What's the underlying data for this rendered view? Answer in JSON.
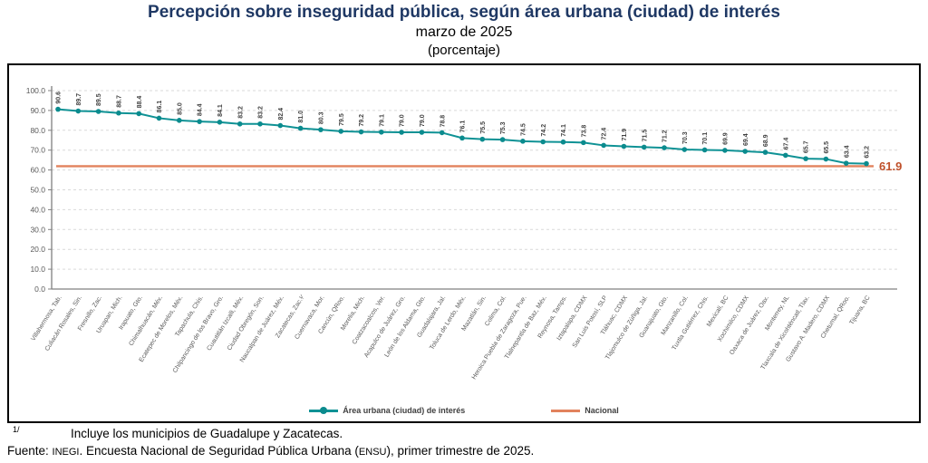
{
  "chart_data": {
    "type": "line",
    "title": "Percepción sobre inseguridad pública, según área urbana (ciudad) de interés",
    "subtitle": "marzo de 2025",
    "unit_label": "(porcentaje)",
    "ylim": [
      0,
      100
    ],
    "ytick_step": 10,
    "ytick_decimals": 1,
    "grid": "horizontal-dashed",
    "legend_position": "bottom",
    "categories": [
      "Villahermosa, Tab.",
      "Culiacán Rosales, Sin.",
      "Fresnillo, Zac.",
      "Uruapan, Mich.",
      "Irapuato, Gto.",
      "Chimalhuacán, Méx.",
      "Ecatepec de Morelos, Méx.",
      "Tapachula, Chis.",
      "Chilpancingo de los Bravo, Gro.",
      "Cuautitlán Izcalli, Méx.",
      "Ciudad Obregón, Son.",
      "Naucalpan de Juárez, Méx.",
      "Zacatecas, Zac.¹⁄",
      "Cuernavaca, Mor.",
      "Cancún, QRoo.",
      "Morelia, Mich.",
      "Coatzacoalcos, Ver.",
      "Acapulco de Juárez, Gro.",
      "León de los Aldama, Gto.",
      "Guadalajara, Jal.",
      "Toluca de Lerdo, Méx.",
      "Mazatlán, Sin.",
      "Colima, Col.",
      "Heroica Puebla de Zaragoza, Pue.",
      "Tlalnepantla de Baz, Méx.",
      "Reynosa, Tamps.",
      "Iztapalapa, CDMX",
      "San Luis Potosí, SLP",
      "Tláhuac, CDMX",
      "Tlajomulco de Zúñiga, Jal.",
      "Guanajuato, Gto.",
      "Manzanillo, Col.",
      "Tuxtla Gutiérrez, Chis.",
      "Mexicali, BC",
      "Xochimilco, CDMX",
      "Oaxaca de Juárez, Oax.",
      "Monterrey, NL",
      "Tlaxcala de Xicohténcatl, Tlax.",
      "Gustavo A. Madero, CDMX",
      "Chetumal, QRoo.",
      "Tijuana, BC"
    ],
    "series": [
      {
        "name": "Área urbana (ciudad) de interés",
        "color": "#0F9295",
        "marker_color": "#0B8B8E",
        "values": [
          90.6,
          89.7,
          89.5,
          88.7,
          88.4,
          86.1,
          85.0,
          84.4,
          84.1,
          83.2,
          83.2,
          82.4,
          81.0,
          80.3,
          79.5,
          79.2,
          79.1,
          79.0,
          79.0,
          78.8,
          76.1,
          75.5,
          75.3,
          74.5,
          74.2,
          74.1,
          73.8,
          72.4,
          71.9,
          71.5,
          71.2,
          70.3,
          70.1,
          69.9,
          69.4,
          68.9,
          67.4,
          65.7,
          65.5,
          63.4,
          63.2
        ]
      }
    ],
    "reference_line": {
      "name": "Nacional",
      "value": 61.9,
      "label": "61.9",
      "color": "#E2825D",
      "label_color": "#C0512B"
    }
  },
  "colors": {
    "grid": "#D9D9D9",
    "axis": "#808080",
    "tick_label": "#595959",
    "value_label": "#3F3F3F",
    "category_label": "#595959"
  },
  "footnotes": {
    "marker": "1/",
    "note": "Incluye los municipios de Guadalupe y Zacatecas.",
    "fuente_prefix": "Fuente: ",
    "fuente_inegi": "INEGI",
    "fuente_mid": ". Encuesta Nacional de Seguridad Pública Urbana (",
    "fuente_ensu": "ENSU",
    "fuente_suffix": "), primer trimestre de 2025."
  }
}
